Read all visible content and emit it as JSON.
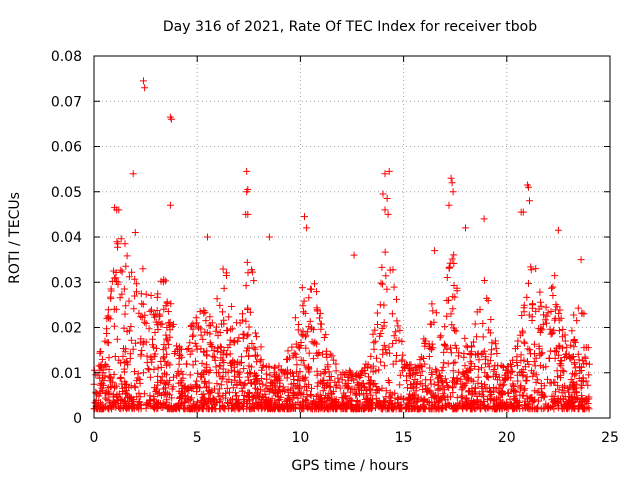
{
  "chart_data": {
    "type": "scatter",
    "title": "Day 316 of 2021, Rate Of TEC Index for receiver tbob",
    "xlabel": "GPS time / hours",
    "ylabel": "ROTI / TECUs",
    "xlim": [
      0,
      25
    ],
    "ylim": [
      0,
      0.08
    ],
    "xticks": [
      0,
      5,
      10,
      15,
      20,
      25
    ],
    "xtick_labels": [
      "0",
      "5",
      "10",
      "15",
      "20",
      "25"
    ],
    "yticks": [
      0,
      0.01,
      0.02,
      0.03,
      0.04,
      0.05,
      0.06,
      0.07,
      0.08
    ],
    "ytick_labels": [
      "0",
      "0.01",
      "0.02",
      "0.03",
      "0.04",
      "0.05",
      "0.06",
      "0.07",
      "0.08"
    ],
    "grid": true,
    "marker": "+",
    "color": "#ff0000",
    "data_range": [
      0,
      24
    ],
    "outliers": [
      [
        2.4,
        0.0745
      ],
      [
        2.45,
        0.073
      ],
      [
        3.7,
        0.0665
      ],
      [
        3.75,
        0.066
      ],
      [
        3.7,
        0.047
      ],
      [
        1.9,
        0.054
      ],
      [
        1.0,
        0.0465
      ],
      [
        1.1,
        0.046
      ],
      [
        1.2,
        0.046
      ],
      [
        7.4,
        0.0545
      ],
      [
        7.45,
        0.0505
      ],
      [
        7.4,
        0.05
      ],
      [
        7.35,
        0.045
      ],
      [
        7.45,
        0.045
      ],
      [
        14.1,
        0.054
      ],
      [
        14.3,
        0.0545
      ],
      [
        14.0,
        0.0495
      ],
      [
        14.2,
        0.0485
      ],
      [
        14.1,
        0.046
      ],
      [
        14.25,
        0.045
      ],
      [
        17.3,
        0.053
      ],
      [
        17.35,
        0.052
      ],
      [
        17.4,
        0.05
      ],
      [
        17.2,
        0.047
      ],
      [
        21.0,
        0.0515
      ],
      [
        21.05,
        0.051
      ],
      [
        21.1,
        0.048
      ],
      [
        20.8,
        0.0455
      ],
      [
        20.7,
        0.0455
      ],
      [
        10.2,
        0.0445
      ],
      [
        10.3,
        0.042
      ],
      [
        2.0,
        0.041
      ],
      [
        5.5,
        0.04
      ],
      [
        8.5,
        0.04
      ],
      [
        18.9,
        0.044
      ],
      [
        18.0,
        0.042
      ],
      [
        22.5,
        0.0415
      ],
      [
        12.6,
        0.036
      ],
      [
        16.5,
        0.037
      ],
      [
        23.6,
        0.035
      ]
    ]
  }
}
